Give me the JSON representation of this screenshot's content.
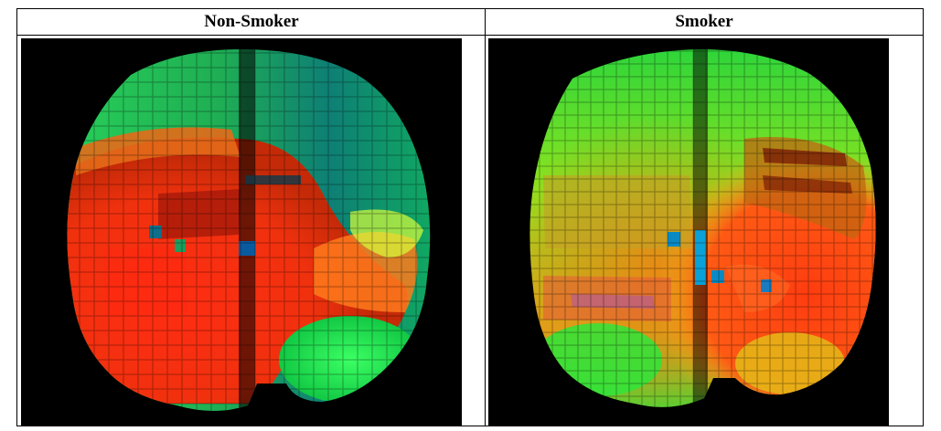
{
  "table": {
    "columns": [
      {
        "id": "non-smoker",
        "label": "Non-Smoker"
      },
      {
        "id": "smoker",
        "label": "Smoker"
      }
    ]
  },
  "images": {
    "non_smoker": {
      "palette": [
        "#ff2a10",
        "#e8ff30",
        "#16ff3c",
        "#0a6f72"
      ]
    },
    "smoker": {
      "palette": [
        "#ff3d10",
        "#a8ff20",
        "#1aff35",
        "#00a6d8"
      ]
    }
  }
}
